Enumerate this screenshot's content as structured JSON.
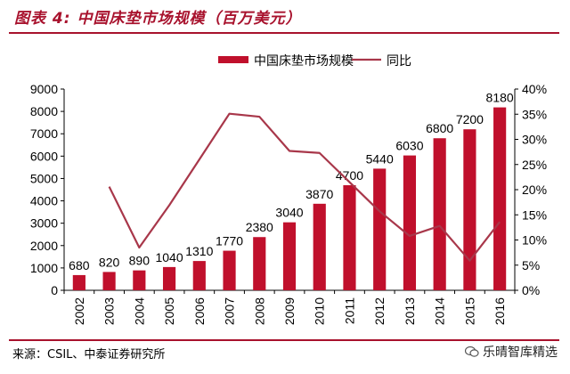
{
  "header": {
    "title": "图表 4:  中国床垫市场规模（百万美元）"
  },
  "footer": {
    "source": "来源：CSIL、中泰证券研究所",
    "watermark": "乐晴智库精选",
    "watermark_icon": "wechat-icon"
  },
  "colors": {
    "accent": "#a8122d",
    "bar": "#c0102c",
    "line": "#a8374a",
    "text": "#000000"
  },
  "chart_data": {
    "type": "bar",
    "title": "图表 4:  中国床垫市场规模（百万美元）",
    "categories": [
      "2002",
      "2003",
      "2004",
      "2005",
      "2006",
      "2007",
      "2008",
      "2009",
      "2010",
      "2011",
      "2012",
      "2013",
      "2014",
      "2015",
      "2016"
    ],
    "series": [
      {
        "name": "中国床垫市场规模",
        "type": "bar",
        "axis": "left",
        "values": [
          680,
          820,
          890,
          1040,
          1310,
          1770,
          2380,
          3040,
          3870,
          4700,
          5440,
          6030,
          6800,
          7200,
          8180
        ]
      },
      {
        "name": "同比",
        "type": "line",
        "axis": "right",
        "values": [
          null,
          20.6,
          8.5,
          16.9,
          26.0,
          35.1,
          34.5,
          27.7,
          27.3,
          21.5,
          15.7,
          10.8,
          12.8,
          5.9,
          13.6
        ]
      }
    ],
    "y_left": {
      "min": 0,
      "max": 9000,
      "step": 1000,
      "tick_labels": [
        "0",
        "1000",
        "2000",
        "3000",
        "4000",
        "5000",
        "6000",
        "7000",
        "8000",
        "9000"
      ]
    },
    "y_right": {
      "min": 0,
      "max": 40,
      "step": 5,
      "tick_labels": [
        "0%",
        "5%",
        "10%",
        "15%",
        "20%",
        "25%",
        "30%",
        "35%",
        "40%"
      ]
    },
    "legend": [
      "中国床垫市场规模",
      "同比"
    ],
    "legend_position": "top-right",
    "grid": false
  }
}
